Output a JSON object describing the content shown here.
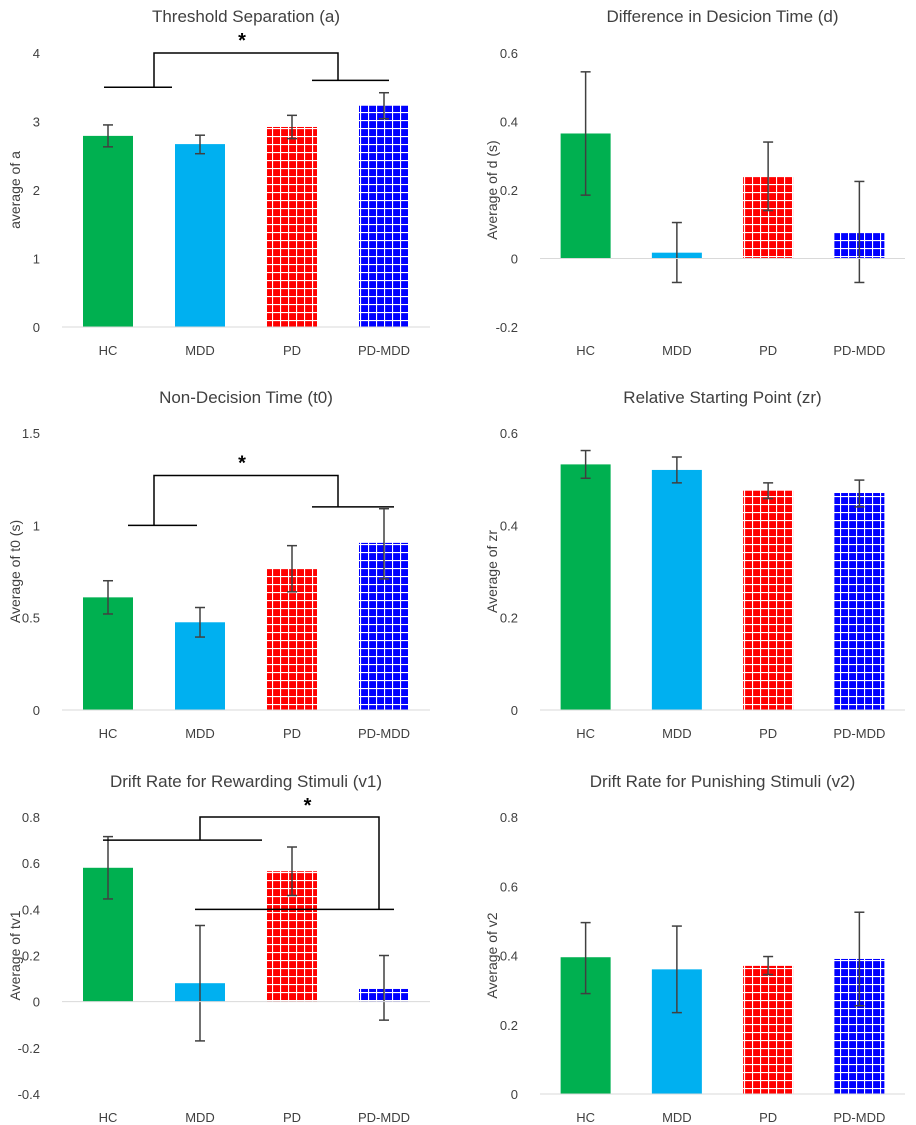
{
  "colors": {
    "HC": "#00b050",
    "MDD": "#00b0f0",
    "PD": "#ff0000",
    "PD-MDD": "#0000ff",
    "PD_pattern": "grid",
    "PD-MDD_pattern": "grid",
    "axis": "#d9d9d9",
    "error_bar": "#404040",
    "bracket": "#000000"
  },
  "chart_data": [
    {
      "type": "bar",
      "title": "Threshold Separation (a)",
      "xlabel": "",
      "ylabel": "average of a",
      "categories": [
        "HC",
        "MDD",
        "PD",
        "PD-MDD"
      ],
      "values": [
        2.79,
        2.67,
        2.92,
        3.23
      ],
      "errors": [
        [
          2.63,
          2.95
        ],
        [
          2.53,
          2.8
        ],
        [
          2.75,
          3.09
        ],
        [
          3.04,
          3.42
        ]
      ],
      "ylim": [
        0,
        4
      ],
      "ticks": [
        0,
        1,
        2,
        3,
        4
      ],
      "tick_labels": [
        "0",
        "1",
        "2",
        "3",
        "4"
      ],
      "significance": {
        "marker": "*",
        "left_bar": [
          2.79,
          2.67,
          3.5
        ],
        "right_bar": [
          2.92,
          3.23,
          3.6
        ],
        "top": 4.0
      }
    },
    {
      "type": "bar",
      "title": "Difference in Desicion Time (d)",
      "xlabel": "",
      "ylabel": "Average of d (s)",
      "categories": [
        "HC",
        "MDD",
        "PD",
        "PD-MDD"
      ],
      "values": [
        0.365,
        0.017,
        0.24,
        0.075
      ],
      "errors": [
        [
          0.185,
          0.545
        ],
        [
          -0.07,
          0.105
        ],
        [
          0.14,
          0.34
        ],
        [
          -0.07,
          0.225
        ]
      ],
      "ylim": [
        -0.2,
        0.6
      ],
      "ticks": [
        -0.2,
        0,
        0.2,
        0.4,
        0.6
      ],
      "tick_labels": [
        "-0.2",
        "0",
        "0.2",
        "0.4",
        "0.6"
      ]
    },
    {
      "type": "bar",
      "title": "Non-Decision Time (t0)",
      "xlabel": "",
      "ylabel": "Average of t0 (s)",
      "categories": [
        "HC",
        "MDD",
        "PD",
        "PD-MDD"
      ],
      "values": [
        0.61,
        0.475,
        0.765,
        0.905
      ],
      "errors": [
        [
          0.52,
          0.7
        ],
        [
          0.395,
          0.555
        ],
        [
          0.64,
          0.89
        ],
        [
          0.71,
          1.09
        ]
      ],
      "ylim": [
        0,
        1.5
      ],
      "ticks": [
        0,
        0.5,
        1,
        1.5
      ],
      "tick_labels": [
        "0",
        "0.5",
        "1",
        "1.5"
      ],
      "significance": {
        "marker": "*",
        "left_bar": [
          0.0,
          0.0,
          1.0
        ],
        "right_bar": [
          0.0,
          0.0,
          1.1
        ],
        "top": 1.27
      }
    },
    {
      "type": "bar",
      "title": "Relative Starting Point (zr)",
      "xlabel": "",
      "ylabel": "Average of zr",
      "categories": [
        "HC",
        "MDD",
        "PD",
        "PD-MDD"
      ],
      "values": [
        0.532,
        0.52,
        0.475,
        0.47
      ],
      "errors": [
        [
          0.502,
          0.562
        ],
        [
          0.492,
          0.548
        ],
        [
          0.458,
          0.492
        ],
        [
          0.44,
          0.498
        ]
      ],
      "ylim": [
        0,
        0.6
      ],
      "ticks": [
        0,
        0.2,
        0.4,
        0.6
      ],
      "tick_labels": [
        "0",
        "0.2",
        "0.4",
        "0.6"
      ]
    },
    {
      "type": "bar",
      "title": "Drift Rate for Rewarding Stimuli (v1)",
      "xlabel": "",
      "ylabel": "Average of tv1",
      "categories": [
        "HC",
        "MDD",
        "PD",
        "PD-MDD"
      ],
      "values": [
        0.58,
        0.08,
        0.565,
        0.055
      ],
      "errors": [
        [
          0.445,
          0.715
        ],
        [
          -0.17,
          0.33
        ],
        [
          0.46,
          0.67
        ],
        [
          -0.08,
          0.2
        ]
      ],
      "ylim": [
        -0.4,
        0.8
      ],
      "ticks": [
        -0.4,
        -0.2,
        0,
        0.2,
        0.4,
        0.6,
        0.8
      ],
      "tick_labels": [
        "-0.4",
        "-0.2",
        "0",
        "0.2",
        "0.4",
        "0.6",
        "0.8"
      ],
      "significance": {
        "marker": "*",
        "upper_line": 0.7,
        "lower_line": 0.4,
        "top": 0.8
      }
    },
    {
      "type": "bar",
      "title": "Drift Rate for Punishing Stimuli (v2)",
      "xlabel": "",
      "ylabel": "Average of v2",
      "categories": [
        "HC",
        "MDD",
        "PD",
        "PD-MDD"
      ],
      "values": [
        0.395,
        0.36,
        0.37,
        0.39
      ],
      "errors": [
        [
          0.29,
          0.495
        ],
        [
          0.235,
          0.485
        ],
        [
          0.345,
          0.397
        ],
        [
          0.255,
          0.525
        ]
      ],
      "ylim": [
        0,
        0.8
      ],
      "ticks": [
        0,
        0.2,
        0.4,
        0.6,
        0.8
      ],
      "tick_labels": [
        "0",
        "0.2",
        "0.4",
        "0.6",
        "0.8"
      ]
    }
  ]
}
